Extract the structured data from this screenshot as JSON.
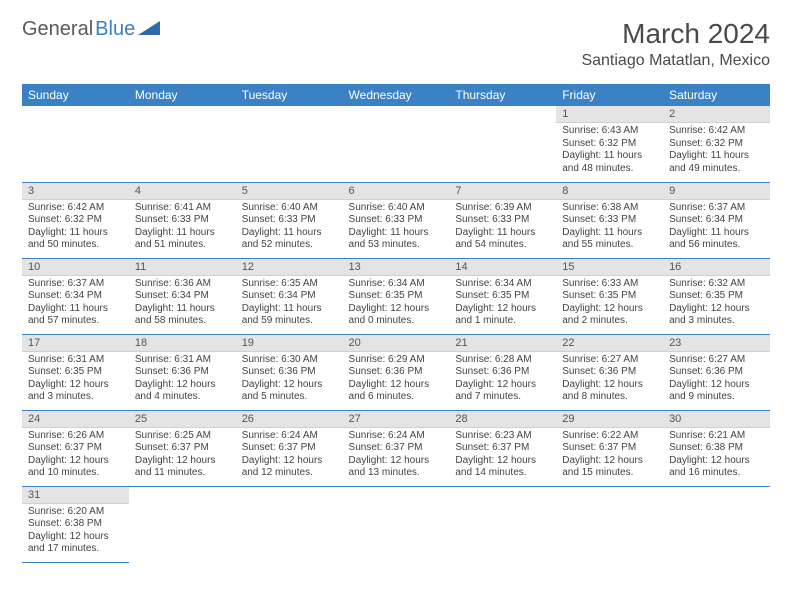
{
  "logo": {
    "general": "General",
    "blue": "Blue"
  },
  "title": "March 2024",
  "location": "Santiago Matatlan, Mexico",
  "colors": {
    "header_bg": "#3a82c4",
    "header_text": "#ffffff",
    "daynum_bg": "#e4e4e4",
    "border": "#3a82c4",
    "text": "#444444"
  },
  "weekdays": [
    "Sunday",
    "Monday",
    "Tuesday",
    "Wednesday",
    "Thursday",
    "Friday",
    "Saturday"
  ],
  "weeks": [
    [
      null,
      null,
      null,
      null,
      null,
      {
        "n": "1",
        "sunrise": "Sunrise: 6:43 AM",
        "sunset": "Sunset: 6:32 PM",
        "daylight": "Daylight: 11 hours and 48 minutes."
      },
      {
        "n": "2",
        "sunrise": "Sunrise: 6:42 AM",
        "sunset": "Sunset: 6:32 PM",
        "daylight": "Daylight: 11 hours and 49 minutes."
      }
    ],
    [
      {
        "n": "3",
        "sunrise": "Sunrise: 6:42 AM",
        "sunset": "Sunset: 6:32 PM",
        "daylight": "Daylight: 11 hours and 50 minutes."
      },
      {
        "n": "4",
        "sunrise": "Sunrise: 6:41 AM",
        "sunset": "Sunset: 6:33 PM",
        "daylight": "Daylight: 11 hours and 51 minutes."
      },
      {
        "n": "5",
        "sunrise": "Sunrise: 6:40 AM",
        "sunset": "Sunset: 6:33 PM",
        "daylight": "Daylight: 11 hours and 52 minutes."
      },
      {
        "n": "6",
        "sunrise": "Sunrise: 6:40 AM",
        "sunset": "Sunset: 6:33 PM",
        "daylight": "Daylight: 11 hours and 53 minutes."
      },
      {
        "n": "7",
        "sunrise": "Sunrise: 6:39 AM",
        "sunset": "Sunset: 6:33 PM",
        "daylight": "Daylight: 11 hours and 54 minutes."
      },
      {
        "n": "8",
        "sunrise": "Sunrise: 6:38 AM",
        "sunset": "Sunset: 6:33 PM",
        "daylight": "Daylight: 11 hours and 55 minutes."
      },
      {
        "n": "9",
        "sunrise": "Sunrise: 6:37 AM",
        "sunset": "Sunset: 6:34 PM",
        "daylight": "Daylight: 11 hours and 56 minutes."
      }
    ],
    [
      {
        "n": "10",
        "sunrise": "Sunrise: 6:37 AM",
        "sunset": "Sunset: 6:34 PM",
        "daylight": "Daylight: 11 hours and 57 minutes."
      },
      {
        "n": "11",
        "sunrise": "Sunrise: 6:36 AM",
        "sunset": "Sunset: 6:34 PM",
        "daylight": "Daylight: 11 hours and 58 minutes."
      },
      {
        "n": "12",
        "sunrise": "Sunrise: 6:35 AM",
        "sunset": "Sunset: 6:34 PM",
        "daylight": "Daylight: 11 hours and 59 minutes."
      },
      {
        "n": "13",
        "sunrise": "Sunrise: 6:34 AM",
        "sunset": "Sunset: 6:35 PM",
        "daylight": "Daylight: 12 hours and 0 minutes."
      },
      {
        "n": "14",
        "sunrise": "Sunrise: 6:34 AM",
        "sunset": "Sunset: 6:35 PM",
        "daylight": "Daylight: 12 hours and 1 minute."
      },
      {
        "n": "15",
        "sunrise": "Sunrise: 6:33 AM",
        "sunset": "Sunset: 6:35 PM",
        "daylight": "Daylight: 12 hours and 2 minutes."
      },
      {
        "n": "16",
        "sunrise": "Sunrise: 6:32 AM",
        "sunset": "Sunset: 6:35 PM",
        "daylight": "Daylight: 12 hours and 3 minutes."
      }
    ],
    [
      {
        "n": "17",
        "sunrise": "Sunrise: 6:31 AM",
        "sunset": "Sunset: 6:35 PM",
        "daylight": "Daylight: 12 hours and 3 minutes."
      },
      {
        "n": "18",
        "sunrise": "Sunrise: 6:31 AM",
        "sunset": "Sunset: 6:36 PM",
        "daylight": "Daylight: 12 hours and 4 minutes."
      },
      {
        "n": "19",
        "sunrise": "Sunrise: 6:30 AM",
        "sunset": "Sunset: 6:36 PM",
        "daylight": "Daylight: 12 hours and 5 minutes."
      },
      {
        "n": "20",
        "sunrise": "Sunrise: 6:29 AM",
        "sunset": "Sunset: 6:36 PM",
        "daylight": "Daylight: 12 hours and 6 minutes."
      },
      {
        "n": "21",
        "sunrise": "Sunrise: 6:28 AM",
        "sunset": "Sunset: 6:36 PM",
        "daylight": "Daylight: 12 hours and 7 minutes."
      },
      {
        "n": "22",
        "sunrise": "Sunrise: 6:27 AM",
        "sunset": "Sunset: 6:36 PM",
        "daylight": "Daylight: 12 hours and 8 minutes."
      },
      {
        "n": "23",
        "sunrise": "Sunrise: 6:27 AM",
        "sunset": "Sunset: 6:36 PM",
        "daylight": "Daylight: 12 hours and 9 minutes."
      }
    ],
    [
      {
        "n": "24",
        "sunrise": "Sunrise: 6:26 AM",
        "sunset": "Sunset: 6:37 PM",
        "daylight": "Daylight: 12 hours and 10 minutes."
      },
      {
        "n": "25",
        "sunrise": "Sunrise: 6:25 AM",
        "sunset": "Sunset: 6:37 PM",
        "daylight": "Daylight: 12 hours and 11 minutes."
      },
      {
        "n": "26",
        "sunrise": "Sunrise: 6:24 AM",
        "sunset": "Sunset: 6:37 PM",
        "daylight": "Daylight: 12 hours and 12 minutes."
      },
      {
        "n": "27",
        "sunrise": "Sunrise: 6:24 AM",
        "sunset": "Sunset: 6:37 PM",
        "daylight": "Daylight: 12 hours and 13 minutes."
      },
      {
        "n": "28",
        "sunrise": "Sunrise: 6:23 AM",
        "sunset": "Sunset: 6:37 PM",
        "daylight": "Daylight: 12 hours and 14 minutes."
      },
      {
        "n": "29",
        "sunrise": "Sunrise: 6:22 AM",
        "sunset": "Sunset: 6:37 PM",
        "daylight": "Daylight: 12 hours and 15 minutes."
      },
      {
        "n": "30",
        "sunrise": "Sunrise: 6:21 AM",
        "sunset": "Sunset: 6:38 PM",
        "daylight": "Daylight: 12 hours and 16 minutes."
      }
    ],
    [
      {
        "n": "31",
        "sunrise": "Sunrise: 6:20 AM",
        "sunset": "Sunset: 6:38 PM",
        "daylight": "Daylight: 12 hours and 17 minutes."
      },
      null,
      null,
      null,
      null,
      null,
      null
    ]
  ]
}
